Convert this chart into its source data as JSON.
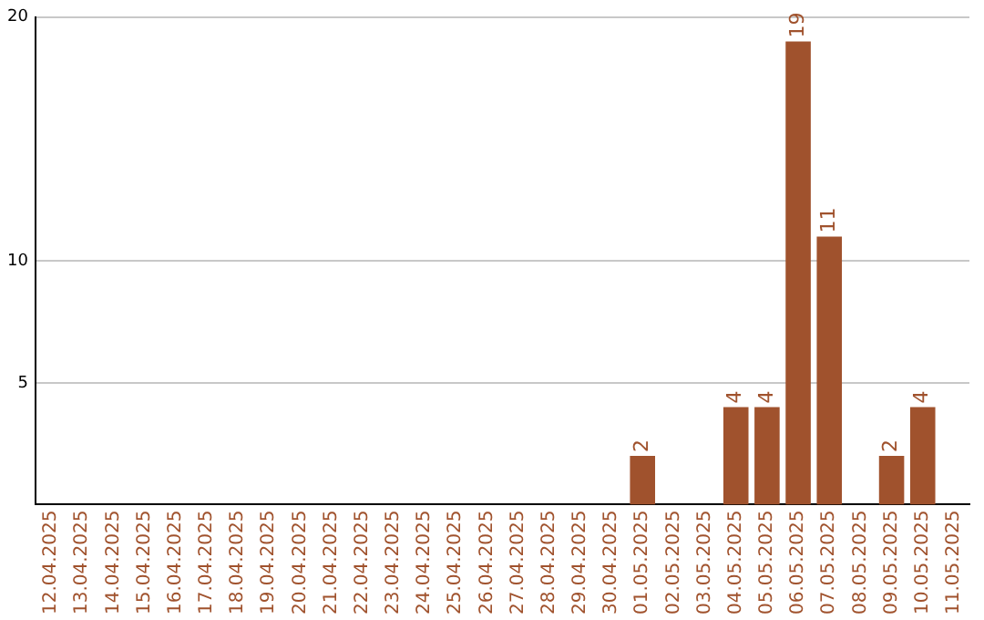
{
  "chart_data": {
    "type": "bar",
    "categories": [
      "12.04.2025",
      "13.04.2025",
      "14.04.2025",
      "15.04.2025",
      "16.04.2025",
      "17.04.2025",
      "18.04.2025",
      "19.04.2025",
      "20.04.2025",
      "21.04.2025",
      "22.04.2025",
      "23.04.2025",
      "24.04.2025",
      "25.04.2025",
      "26.04.2025",
      "27.04.2025",
      "28.04.2025",
      "29.04.2025",
      "30.04.2025",
      "01.05.2025",
      "02.05.2025",
      "03.05.2025",
      "04.05.2025",
      "05.05.2025",
      "06.05.2025",
      "07.05.2025",
      "08.05.2025",
      "09.05.2025",
      "10.05.2025",
      "11.05.2025"
    ],
    "values": [
      0,
      0,
      0,
      0,
      0,
      0,
      0,
      0,
      0,
      0,
      0,
      0,
      0,
      0,
      0,
      0,
      0,
      0,
      0,
      2,
      0,
      0,
      4,
      4,
      19,
      11,
      0,
      2,
      4,
      0
    ],
    "value_labels": [
      null,
      null,
      null,
      null,
      null,
      null,
      null,
      null,
      null,
      null,
      null,
      null,
      null,
      null,
      null,
      null,
      null,
      null,
      null,
      "2",
      null,
      null,
      "4",
      "4",
      "19",
      "11",
      null,
      "2",
      "4",
      null
    ],
    "color": "#a0522d",
    "ylim": [
      0,
      20
    ],
    "yticks": [
      5,
      10,
      20
    ],
    "grid": "y",
    "legend": false
  }
}
